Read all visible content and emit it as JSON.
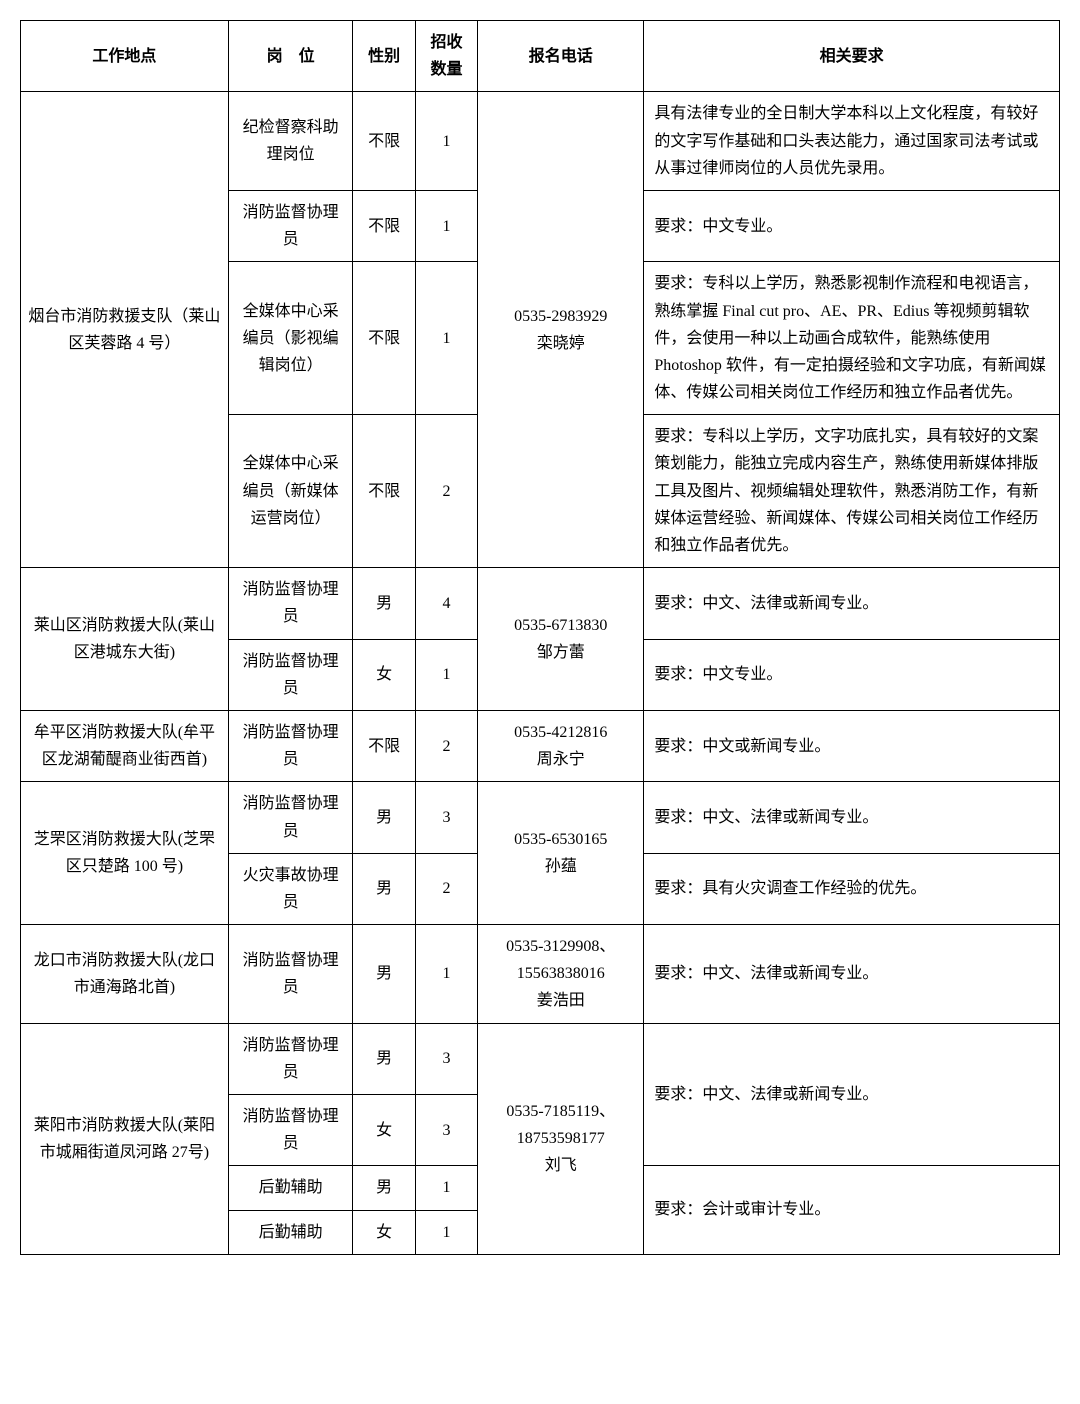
{
  "columns": [
    "工作地点",
    "岗　位",
    "性别",
    "招收\n数量",
    "报名电话",
    "相关要求"
  ],
  "groups": [
    {
      "location": "烟台市消防救援支队（莱山区芙蓉路 4 号）",
      "phone": "0535-2983929\n栾晓婷",
      "rows": [
        {
          "position": "纪检督察科助理岗位",
          "sex": "不限",
          "num": "1",
          "req": "具有法律专业的全日制大学本科以上文化程度，有较好的文字写作基础和口头表达能力，通过国家司法考试或从事过律师岗位的人员优先录用。"
        },
        {
          "position": "消防监督协理员",
          "sex": "不限",
          "num": "1",
          "req": "要求：中文专业。"
        },
        {
          "position": "全媒体中心采编员（影视编辑岗位）",
          "sex": "不限",
          "num": "1",
          "req": "要求：专科以上学历，熟悉影视制作流程和电视语言，熟练掌握 Final cut pro、AE、PR、Edius 等视频剪辑软件，会使用一种以上动画合成软件，能熟练使用 Photoshop 软件，有一定拍摄经验和文字功底，有新闻媒体、传媒公司相关岗位工作经历和独立作品者优先。"
        },
        {
          "position": "全媒体中心采编员（新媒体运营岗位）",
          "sex": "不限",
          "num": "2",
          "req": "要求：专科以上学历，文字功底扎实，具有较好的文案策划能力，能独立完成内容生产，熟练使用新媒体排版工具及图片、视频编辑处理软件，熟悉消防工作，有新媒体运营经验、新闻媒体、传媒公司相关岗位工作经历和独立作品者优先。"
        }
      ]
    },
    {
      "location": "莱山区消防救援大队(莱山区港城东大街)",
      "phone": "0535-6713830\n邹方蕾",
      "rows": [
        {
          "position": "消防监督协理员",
          "sex": "男",
          "num": "4",
          "req": "要求：中文、法律或新闻专业。"
        },
        {
          "position": "消防监督协理员",
          "sex": "女",
          "num": "1",
          "req": "要求：中文专业。"
        }
      ]
    },
    {
      "location": "牟平区消防救援大队(牟平区龙湖葡醍商业街西首)",
      "phone": "0535-4212816\n周永宁",
      "rows": [
        {
          "position": "消防监督协理员",
          "sex": "不限",
          "num": "2",
          "req": "要求：中文或新闻专业。"
        }
      ]
    },
    {
      "location": "芝罘区消防救援大队(芝罘区只楚路 100 号)",
      "phone": "0535-6530165\n孙蕴",
      "rows": [
        {
          "position": "消防监督协理员",
          "sex": "男",
          "num": "3",
          "req": "要求：中文、法律或新闻专业。"
        },
        {
          "position": "火灾事故协理员",
          "sex": "男",
          "num": "2",
          "req": "要求：具有火灾调查工作经验的优先。"
        }
      ]
    },
    {
      "location": "龙口市消防救援大队(龙口市通海路北首)",
      "phone": "0535-3129908、\n15563838016\n姜浩田",
      "rows": [
        {
          "position": "消防监督协理员",
          "sex": "男",
          "num": "1",
          "req": "要求：中文、法律或新闻专业。"
        }
      ]
    },
    {
      "location": "莱阳市消防救援大队(莱阳市城厢街道凤河路 27号)",
      "phone": "0535-7185119、\n18753598177\n刘飞",
      "rows": [
        {
          "position": "消防监督协理员",
          "sex": "男",
          "num": "3",
          "req": "要求：中文、法律或新闻专业。",
          "reqRowspan": 2
        },
        {
          "position": "消防监督协理员",
          "sex": "女",
          "num": "3"
        },
        {
          "position": "后勤辅助",
          "sex": "男",
          "num": "1",
          "req": "要求：会计或审计专业。",
          "reqRowspan": 2
        },
        {
          "position": "后勤辅助",
          "sex": "女",
          "num": "1"
        }
      ]
    }
  ]
}
